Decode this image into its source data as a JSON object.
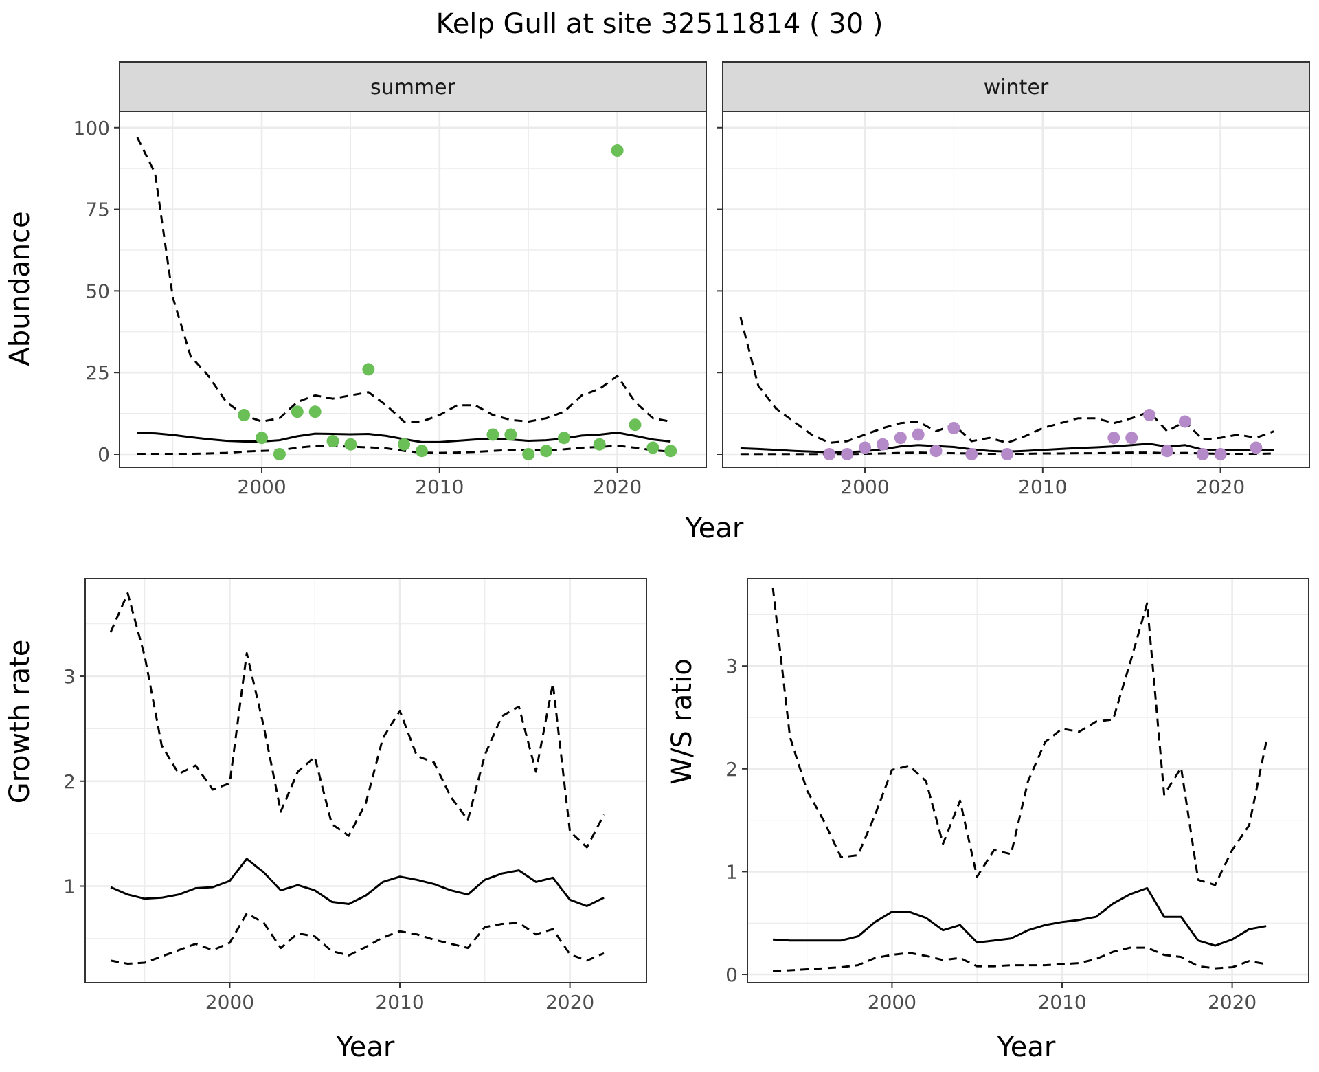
{
  "title": "Kelp Gull at site 32511814 ( 30 )",
  "colors": {
    "summer_points": "#6abf57",
    "winter_points": "#b58ac8",
    "line": "#000000",
    "strip_bg": "#d9d9d9",
    "grid": "#ebebeb",
    "tick_text": "#4d4d4d"
  },
  "chart_data": [
    {
      "type": "line",
      "panel": "summer",
      "strip_label": "summer",
      "xlabel": "Year",
      "ylabel": "Abundance",
      "xlim": [
        1992,
        2025
      ],
      "ylim": [
        -4,
        105
      ],
      "xticks": [
        2000,
        2010,
        2020
      ],
      "yticks": [
        0,
        25,
        50,
        75,
        100
      ],
      "grid": true,
      "points": {
        "x": [
          1999,
          2000,
          2001,
          2002,
          2003,
          2004,
          2005,
          2006,
          2008,
          2009,
          2013,
          2014,
          2015,
          2016,
          2017,
          2019,
          2020,
          2021,
          2022,
          2023
        ],
        "y": [
          12,
          5,
          0,
          13,
          13,
          4,
          3,
          26,
          3,
          1,
          6,
          6,
          0,
          1,
          5,
          3,
          93,
          9,
          2,
          1
        ]
      },
      "series": [
        {
          "style": "solid",
          "x": [
            1993,
            1994,
            1995,
            1996,
            1997,
            1998,
            1999,
            2000,
            2001,
            2002,
            2003,
            2004,
            2005,
            2006,
            2007,
            2008,
            2009,
            2010,
            2011,
            2012,
            2013,
            2014,
            2015,
            2016,
            2017,
            2018,
            2019,
            2020,
            2021,
            2022,
            2023
          ],
          "y": [
            6.5,
            6.4,
            5.9,
            5.2,
            4.6,
            4.1,
            3.9,
            3.9,
            4.3,
            5.5,
            6.3,
            6.2,
            6.1,
            6.2,
            5.6,
            4.6,
            3.7,
            3.7,
            4.1,
            4.5,
            4.7,
            4.5,
            4.1,
            4.3,
            4.8,
            5.7,
            6.0,
            6.6,
            5.6,
            4.5,
            3.9
          ]
        },
        {
          "style": "dashed",
          "x": [
            1993,
            1994,
            1995,
            1996,
            1997,
            1998,
            1999,
            2000,
            2001,
            2002,
            2003,
            2004,
            2005,
            2006,
            2007,
            2008,
            2009,
            2010,
            2011,
            2012,
            2013,
            2014,
            2015,
            2016,
            2017,
            2018,
            2019,
            2020,
            2021,
            2022,
            2023
          ],
          "y": [
            97,
            86,
            48,
            30,
            24,
            16,
            12,
            10,
            11,
            16,
            18,
            17,
            18,
            19,
            15,
            10,
            10,
            12,
            15,
            15,
            12,
            10.5,
            10,
            11,
            13,
            18,
            20,
            24,
            16,
            11,
            10
          ]
        },
        {
          "style": "dashed",
          "x": [
            1993,
            1994,
            1995,
            1996,
            1997,
            1998,
            1999,
            2000,
            2001,
            2002,
            2003,
            2004,
            2005,
            2006,
            2007,
            2008,
            2009,
            2010,
            2011,
            2012,
            2013,
            2014,
            2015,
            2016,
            2017,
            2018,
            2019,
            2020,
            2021,
            2022,
            2023
          ],
          "y": [
            0.1,
            0.1,
            0.1,
            0.1,
            0.2,
            0.4,
            0.8,
            1.0,
            1.2,
            2.0,
            2.5,
            2.5,
            2.3,
            2.1,
            1.8,
            1.0,
            0.5,
            0.4,
            0.5,
            0.7,
            1.0,
            1.3,
            1.2,
            1.2,
            1.5,
            2.0,
            2.2,
            2.6,
            2.0,
            1.2,
            0.8
          ]
        }
      ]
    },
    {
      "type": "line",
      "panel": "winter",
      "strip_label": "winter",
      "xlabel": "Year",
      "ylabel": "Abundance",
      "xlim": [
        1992,
        2025
      ],
      "ylim": [
        -4,
        105
      ],
      "xticks": [
        2000,
        2010,
        2020
      ],
      "yticks": [
        0,
        25,
        50,
        75,
        100
      ],
      "grid": true,
      "points": {
        "x": [
          1998,
          1999,
          2000,
          2001,
          2002,
          2003,
          2004,
          2005,
          2006,
          2008,
          2014,
          2015,
          2016,
          2017,
          2018,
          2019,
          2020,
          2022
        ],
        "y": [
          0,
          0,
          2,
          3,
          5,
          6,
          1,
          8,
          0,
          0,
          5,
          5,
          12,
          1,
          10,
          0,
          0,
          2
        ]
      },
      "series": [
        {
          "style": "solid",
          "x": [
            1993,
            1994,
            1995,
            1996,
            1997,
            1998,
            1999,
            2000,
            2001,
            2002,
            2003,
            2004,
            2005,
            2006,
            2007,
            2008,
            2009,
            2010,
            2011,
            2012,
            2013,
            2014,
            2015,
            2016,
            2017,
            2018,
            2019,
            2020,
            2021,
            2022,
            2023
          ],
          "y": [
            1.8,
            1.6,
            1.3,
            1.0,
            0.8,
            0.6,
            0.6,
            0.9,
            1.5,
            2.4,
            2.8,
            2.5,
            2.2,
            1.5,
            1.0,
            0.8,
            1.0,
            1.3,
            1.6,
            1.9,
            2.1,
            2.4,
            2.8,
            3.2,
            2.3,
            2.8,
            1.4,
            1.2,
            1.2,
            1.3,
            1.3
          ]
        },
        {
          "style": "dashed",
          "x": [
            1993,
            1994,
            1995,
            1996,
            1997,
            1998,
            1999,
            2000,
            2001,
            2002,
            2003,
            2004,
            2005,
            2006,
            2007,
            2008,
            2009,
            2010,
            2011,
            2012,
            2013,
            2014,
            2015,
            2016,
            2017,
            2018,
            2019,
            2020,
            2021,
            2022,
            2023
          ],
          "y": [
            42,
            21,
            14,
            10,
            6,
            3.5,
            4,
            6,
            8,
            9.5,
            10,
            7,
            9,
            4,
            5,
            3.5,
            5.5,
            8,
            9.5,
            11,
            11,
            9.5,
            11,
            13,
            7,
            10,
            4.5,
            5,
            6,
            5,
            7
          ]
        },
        {
          "style": "dashed",
          "x": [
            1993,
            1994,
            1995,
            1996,
            1997,
            1998,
            1999,
            2000,
            2001,
            2002,
            2003,
            2004,
            2005,
            2006,
            2007,
            2008,
            2009,
            2010,
            2011,
            2012,
            2013,
            2014,
            2015,
            2016,
            2017,
            2018,
            2019,
            2020,
            2021,
            2022,
            2023
          ],
          "y": [
            0.05,
            0.05,
            0.05,
            0.05,
            0.05,
            0.05,
            0.05,
            0.1,
            0.2,
            0.4,
            0.5,
            0.4,
            0.3,
            0.2,
            0.1,
            0.1,
            0.1,
            0.2,
            0.2,
            0.3,
            0.3,
            0.4,
            0.5,
            0.5,
            0.3,
            0.4,
            0.2,
            0.1,
            0.1,
            0.1,
            0.2
          ]
        }
      ]
    },
    {
      "type": "line",
      "panel": "growth",
      "xlabel": "Year",
      "ylabel": "Growth rate",
      "xlim": [
        1991.5,
        2024.5
      ],
      "ylim": [
        0.08,
        3.93
      ],
      "xticks": [
        2000,
        2010,
        2020
      ],
      "yticks": [
        1,
        2,
        3
      ],
      "grid": true,
      "series": [
        {
          "style": "solid",
          "x": [
            1993,
            1994,
            1995,
            1996,
            1997,
            1998,
            1999,
            2000,
            2001,
            2002,
            2003,
            2004,
            2005,
            2006,
            2007,
            2008,
            2009,
            2010,
            2011,
            2012,
            2013,
            2014,
            2015,
            2016,
            2017,
            2018,
            2019,
            2020,
            2021,
            2022
          ],
          "y": [
            0.99,
            0.92,
            0.88,
            0.89,
            0.92,
            0.98,
            0.99,
            1.05,
            1.26,
            1.13,
            0.96,
            1.01,
            0.96,
            0.85,
            0.83,
            0.91,
            1.04,
            1.09,
            1.06,
            1.02,
            0.96,
            0.92,
            1.06,
            1.12,
            1.15,
            1.04,
            1.08,
            0.87,
            0.81,
            0.89
          ]
        },
        {
          "style": "dashed",
          "x": [
            1993,
            1994,
            1995,
            1996,
            1997,
            1998,
            1999,
            2000,
            2001,
            2002,
            2003,
            2004,
            2005,
            2006,
            2007,
            2008,
            2009,
            2010,
            2011,
            2012,
            2013,
            2014,
            2015,
            2016,
            2017,
            2018,
            2019,
            2020,
            2021,
            2022
          ],
          "y": [
            3.42,
            3.79,
            3.19,
            2.34,
            2.07,
            2.15,
            1.92,
            1.98,
            3.22,
            2.52,
            1.71,
            2.09,
            2.23,
            1.59,
            1.48,
            1.79,
            2.41,
            2.67,
            2.24,
            2.18,
            1.85,
            1.63,
            2.25,
            2.62,
            2.71,
            2.09,
            2.93,
            1.52,
            1.37,
            1.68
          ]
        },
        {
          "style": "dashed",
          "x": [
            1993,
            1994,
            1995,
            1996,
            1997,
            1998,
            1999,
            2000,
            2001,
            2002,
            2003,
            2004,
            2005,
            2006,
            2007,
            2008,
            2009,
            2010,
            2011,
            2012,
            2013,
            2014,
            2015,
            2016,
            2017,
            2018,
            2019,
            2020,
            2021,
            2022
          ],
          "y": [
            0.29,
            0.26,
            0.27,
            0.33,
            0.39,
            0.45,
            0.39,
            0.46,
            0.74,
            0.65,
            0.41,
            0.55,
            0.52,
            0.38,
            0.34,
            0.42,
            0.51,
            0.57,
            0.54,
            0.49,
            0.45,
            0.41,
            0.61,
            0.64,
            0.65,
            0.54,
            0.59,
            0.35,
            0.29,
            0.36
          ]
        }
      ]
    },
    {
      "type": "line",
      "panel": "ratio",
      "xlabel": "Year",
      "ylabel": "W/S ratio",
      "xlim": [
        1991.5,
        2024.5
      ],
      "ylim": [
        -0.08,
        3.85
      ],
      "xticks": [
        2000,
        2010,
        2020
      ],
      "yticks": [
        0,
        1,
        2,
        3
      ],
      "grid": true,
      "series": [
        {
          "style": "solid",
          "x": [
            1993,
            1994,
            1995,
            1996,
            1997,
            1998,
            1999,
            2000,
            2001,
            2002,
            2003,
            2004,
            2005,
            2006,
            2007,
            2008,
            2009,
            2010,
            2011,
            2012,
            2013,
            2014,
            2015,
            2016,
            2017,
            2018,
            2019,
            2020,
            2021,
            2022
          ],
          "y": [
            0.34,
            0.33,
            0.33,
            0.33,
            0.33,
            0.37,
            0.51,
            0.61,
            0.61,
            0.55,
            0.43,
            0.48,
            0.31,
            0.33,
            0.35,
            0.43,
            0.48,
            0.51,
            0.53,
            0.56,
            0.69,
            0.78,
            0.84,
            0.56,
            0.56,
            0.33,
            0.28,
            0.34,
            0.44,
            0.47
          ]
        },
        {
          "style": "dashed",
          "x": [
            1993,
            1994,
            1995,
            1996,
            1997,
            1998,
            1999,
            2000,
            2001,
            2002,
            2003,
            2004,
            2005,
            2006,
            2007,
            2008,
            2009,
            2010,
            2011,
            2012,
            2013,
            2014,
            2015,
            2016,
            2017,
            2018,
            2019,
            2020,
            2021,
            2022
          ],
          "y": [
            3.76,
            2.31,
            1.79,
            1.49,
            1.14,
            1.16,
            1.55,
            1.99,
            2.03,
            1.88,
            1.27,
            1.69,
            0.95,
            1.21,
            1.17,
            1.88,
            2.26,
            2.39,
            2.36,
            2.46,
            2.48,
            3.03,
            3.61,
            1.75,
            2.01,
            0.92,
            0.87,
            1.21,
            1.45,
            2.26
          ]
        },
        {
          "style": "dashed",
          "x": [
            1993,
            1994,
            1995,
            1996,
            1997,
            1998,
            1999,
            2000,
            2001,
            2002,
            2003,
            2004,
            2005,
            2006,
            2007,
            2008,
            2009,
            2010,
            2011,
            2012,
            2013,
            2014,
            2015,
            2016,
            2017,
            2018,
            2019,
            2020,
            2021,
            2022
          ],
          "y": [
            0.03,
            0.04,
            0.05,
            0.06,
            0.07,
            0.09,
            0.16,
            0.19,
            0.21,
            0.18,
            0.14,
            0.16,
            0.08,
            0.08,
            0.09,
            0.09,
            0.09,
            0.1,
            0.11,
            0.15,
            0.22,
            0.26,
            0.26,
            0.19,
            0.17,
            0.08,
            0.06,
            0.07,
            0.13,
            0.1
          ]
        }
      ]
    }
  ]
}
